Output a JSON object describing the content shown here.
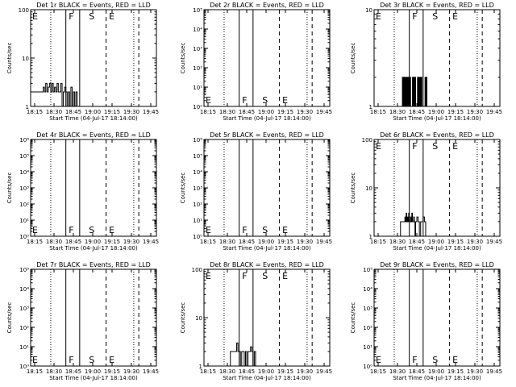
{
  "chart_data": [
    {
      "title": "Det 1r BLACK = Events, RED = LLD",
      "type": "line",
      "yscale": "log",
      "ylim": [
        1,
        100
      ],
      "yticks": [
        "1",
        "10",
        "100"
      ],
      "xlabel": "Start Time (04-Jul-17 18:14:00)",
      "ylabel": "Counts/sec",
      "xticks": [
        "18:15",
        "18:30",
        "18:45",
        "19:00",
        "19:15",
        "19:30",
        "19:45"
      ],
      "markers": [
        {
          "label": "E",
          "x": 0.0
        },
        {
          "label": "F",
          "x": 29.0
        },
        {
          "label": "S",
          "x": 45.0
        },
        {
          "label": "E",
          "x": 61.0
        }
      ],
      "events": {
        "x": [
          0,
          3,
          6,
          9,
          10,
          11,
          12,
          13,
          14,
          15,
          16,
          17,
          18,
          19,
          20,
          21,
          22,
          23,
          24,
          25,
          26,
          27,
          28,
          29,
          30,
          31,
          32,
          33,
          34,
          35,
          36,
          37,
          38,
          39,
          40,
          42
        ],
        "y": [
          2,
          2,
          2,
          2,
          2.5,
          2,
          3,
          2,
          2.5,
          3,
          2,
          3,
          2,
          2.5,
          2,
          3,
          2,
          2,
          3,
          1,
          2,
          2.5,
          2,
          1,
          2,
          1,
          2.5,
          1,
          2,
          1,
          2,
          1,
          1,
          1,
          1,
          1
        ]
      }
    },
    {
      "title": "Det 2r BLACK = Events, RED = LLD",
      "type": "line",
      "yscale": "log",
      "ylim": [
        1,
        100000
      ],
      "yticks": [
        "10⁰",
        "10¹",
        "10²",
        "10³",
        "10⁴",
        "10⁵"
      ],
      "xlabel": "Start Time (04-Jul-17 18:14:00)",
      "ylabel": "Counts/sec",
      "xticks": [
        "18:15",
        "18:30",
        "18:45",
        "19:00",
        "19:15",
        "19:30",
        "19:45"
      ],
      "markers": [
        {
          "label": "E",
          "x": 0.0
        },
        {
          "label": "F",
          "x": 29.0
        },
        {
          "label": "S",
          "x": 45.0
        },
        {
          "label": "E",
          "x": 61.0
        }
      ],
      "events": {
        "x": [],
        "y": []
      }
    },
    {
      "title": "Det 3r BLACK = Events, RED = LLD",
      "type": "line",
      "yscale": "log",
      "ylim": [
        1,
        10
      ],
      "yticks": [
        "1",
        "10"
      ],
      "xlabel": "Start Time (04-Jul-17 18:14:00)",
      "ylabel": "Counts/sec",
      "xticks": [
        "18:15",
        "18:30",
        "18:45",
        "19:00",
        "19:15",
        "19:30",
        "19:45"
      ],
      "markers": [
        {
          "label": "E",
          "x": 0.0
        },
        {
          "label": "F",
          "x": 29.0
        },
        {
          "label": "S",
          "x": 45.0
        },
        {
          "label": "E",
          "x": 61.0
        }
      ],
      "events": {
        "x": [
          22,
          22.5,
          23,
          23.5,
          24,
          24.5,
          25,
          25.5,
          26,
          26.5,
          27,
          27.5,
          28,
          28.5,
          29,
          29.5,
          30,
          30.5,
          31,
          31.5,
          32,
          32.5,
          33,
          33.5,
          34,
          34.5,
          35,
          35.5,
          36,
          36.5,
          37,
          37.5,
          38,
          38.5,
          39,
          39.5,
          40,
          40.5,
          41,
          41.5,
          42
        ],
        "y": [
          1,
          2,
          1,
          2,
          1,
          2,
          1,
          2,
          1,
          2,
          1,
          2,
          1,
          2,
          1,
          1,
          1,
          2,
          1,
          2,
          1,
          2,
          1,
          1,
          1,
          2,
          1,
          2,
          1,
          2,
          1,
          2,
          1,
          1,
          1,
          1,
          1,
          2,
          1,
          2,
          1
        ]
      }
    },
    {
      "title": "Det 4r BLACK = Events, RED = LLD",
      "type": "line",
      "yscale": "log",
      "ylim": [
        1,
        1000000
      ],
      "yticks": [
        "10⁰",
        "10¹",
        "10²",
        "10³",
        "10⁴",
        "10⁵",
        "10⁶"
      ],
      "xlabel": "Start Time (04-Jul-17 18:14:00)",
      "ylabel": "Counts/sec",
      "xticks": [
        "18:15",
        "18:30",
        "18:45",
        "19:00",
        "19:15",
        "19:30",
        "19:45"
      ],
      "markers": [
        {
          "label": "E",
          "x": 0.0
        },
        {
          "label": "F",
          "x": 29.0
        },
        {
          "label": "S",
          "x": 45.0
        },
        {
          "label": "E",
          "x": 61.0
        }
      ],
      "events": {
        "x": [],
        "y": []
      }
    },
    {
      "title": "Det 5r BLACK = Events, RED = LLD",
      "type": "line",
      "yscale": "log",
      "ylim": [
        1,
        1000000
      ],
      "yticks": [
        "10⁰",
        "10¹",
        "10²",
        "10³",
        "10⁴",
        "10⁵",
        "10⁶"
      ],
      "xlabel": "Start Time (04-Jul-17 18:14:00)",
      "ylabel": "Counts/sec",
      "xticks": [
        "18:15",
        "18:30",
        "18:45",
        "19:00",
        "19:15",
        "19:30",
        "19:45"
      ],
      "markers": [
        {
          "label": "E",
          "x": 0.0
        },
        {
          "label": "F",
          "x": 29.0
        },
        {
          "label": "S",
          "x": 45.0
        },
        {
          "label": "E",
          "x": 61.0
        }
      ],
      "events": {
        "x": [],
        "y": []
      }
    },
    {
      "title": "Det 6r BLACK = Events, RED = LLD",
      "type": "line",
      "yscale": "log",
      "ylim": [
        1,
        100
      ],
      "yticks": [
        "1",
        "10",
        "100"
      ],
      "xlabel": "Start Time (04-Jul-17 18:14:00)",
      "ylabel": "Counts/sec",
      "xticks": [
        "18:15",
        "18:30",
        "18:45",
        "19:00",
        "19:15",
        "19:30",
        "19:45"
      ],
      "markers": [
        {
          "label": "E",
          "x": 0.0
        },
        {
          "label": "F",
          "x": 29.0
        },
        {
          "label": "S",
          "x": 45.0
        },
        {
          "label": "E",
          "x": 61.0
        }
      ],
      "events": {
        "x": [
          20,
          21,
          22,
          23,
          24,
          24.5,
          25,
          25.5,
          26,
          26.5,
          27,
          27.5,
          28,
          28.5,
          29,
          29.5,
          30,
          30.5,
          31,
          31.5,
          32,
          32.5,
          33,
          33.5,
          34,
          35,
          36,
          37,
          38,
          39,
          40,
          41,
          42
        ],
        "y": [
          1,
          2,
          2,
          2,
          2,
          2.5,
          2,
          3,
          2,
          2.5,
          2,
          3,
          2,
          2,
          2.5,
          2,
          3,
          2,
          2,
          2.5,
          2,
          1,
          2,
          2,
          2.5,
          2,
          1,
          2,
          2,
          2.5,
          2,
          1,
          1
        ]
      }
    },
    {
      "title": "Det 7r BLACK = Events, RED = LLD",
      "type": "line",
      "yscale": "log",
      "ylim": [
        1,
        100000
      ],
      "yticks": [
        "10⁰",
        "10¹",
        "10²",
        "10³",
        "10⁴",
        "10⁵"
      ],
      "xlabel": "Start Time (04-Jul-17 18:14:00)",
      "ylabel": "Counts/sec",
      "xticks": [
        "18:15",
        "18:30",
        "18:45",
        "19:00",
        "19:15",
        "19:30",
        "19:45"
      ],
      "markers": [
        {
          "label": "E",
          "x": 0.0
        },
        {
          "label": "F",
          "x": 29.0
        },
        {
          "label": "S",
          "x": 45.0
        },
        {
          "label": "E",
          "x": 61.0
        }
      ],
      "events": {
        "x": [],
        "y": []
      }
    },
    {
      "title": "Det 8r BLACK = Events, RED = LLD",
      "type": "line",
      "yscale": "log",
      "ylim": [
        1,
        100
      ],
      "yticks": [
        "1",
        "10",
        "100"
      ],
      "xlabel": "Start Time (04-Jul-17 18:14:00)",
      "ylabel": "Counts/sec",
      "xticks": [
        "18:15",
        "18:30",
        "18:45",
        "19:00",
        "19:15",
        "19:30",
        "19:45"
      ],
      "markers": [
        {
          "label": "E",
          "x": 0.0
        },
        {
          "label": "F",
          "x": 29.0
        },
        {
          "label": "S",
          "x": 45.0
        },
        {
          "label": "E",
          "x": 61.0
        }
      ],
      "events": {
        "x": [
          20,
          21,
          22,
          23,
          24,
          25,
          26,
          27,
          28,
          29,
          30,
          31,
          32,
          33,
          34,
          35,
          36,
          37,
          38,
          39,
          40,
          41,
          42
        ],
        "y": [
          1,
          2,
          2,
          2,
          2,
          2,
          3,
          2,
          2,
          1,
          2,
          2,
          1,
          2,
          1,
          2,
          2,
          2.5,
          2,
          1,
          2,
          1,
          1
        ]
      }
    },
    {
      "title": "Det 9r BLACK = Events, RED = LLD",
      "type": "line",
      "yscale": "log",
      "ylim": [
        1,
        100000
      ],
      "yticks": [
        "10⁰",
        "10¹",
        "10²",
        "10³",
        "10⁴",
        "10⁵"
      ],
      "xlabel": "Start Time (04-Jul-17 18:14:00)",
      "ylabel": "Counts/sec",
      "xticks": [
        "18:15",
        "18:30",
        "18:45",
        "19:00",
        "19:15",
        "19:30",
        "19:45"
      ],
      "markers": [
        {
          "label": "E",
          "x": 0.0
        },
        {
          "label": "F",
          "x": 29.0
        },
        {
          "label": "S",
          "x": 45.0
        },
        {
          "label": "E",
          "x": 61.0
        }
      ],
      "events": {
        "x": [],
        "y": []
      }
    }
  ]
}
